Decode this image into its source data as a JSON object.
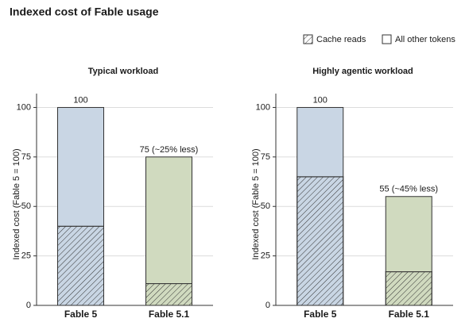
{
  "title": "Indexed cost of Fable usage",
  "legend": [
    "Cache reads",
    "All other tokens"
  ],
  "charts": [
    {
      "type": "bar",
      "stacked": true,
      "title": "Typical workload",
      "ylabel": "Indexed cost (Fable 5 = 100)",
      "categories": [
        "Fable 5",
        "Fable 5.1"
      ],
      "colors": [
        "#c9d6e4",
        "#d0dabf"
      ],
      "series": [
        {
          "name": "Cache reads",
          "hatch": true,
          "values": [
            40,
            11
          ]
        },
        {
          "name": "All other tokens",
          "hatch": false,
          "values": [
            60,
            64
          ]
        }
      ],
      "totals": [
        100,
        75
      ],
      "total_labels": [
        "100",
        "75 (~25% less)"
      ],
      "ylim": [
        0,
        107
      ],
      "yticks": [
        0,
        25,
        50,
        75,
        100
      ],
      "grid": true
    },
    {
      "type": "bar",
      "stacked": true,
      "title": "Highly agentic workload",
      "ylabel": "Indexed cost (Fable 5 = 100)",
      "categories": [
        "Fable 5",
        "Fable 5.1"
      ],
      "colors": [
        "#c9d6e4",
        "#d0dabf"
      ],
      "series": [
        {
          "name": "Cache reads",
          "hatch": true,
          "values": [
            65,
            17
          ]
        },
        {
          "name": "All other tokens",
          "hatch": false,
          "values": [
            35,
            38
          ]
        }
      ],
      "totals": [
        100,
        55
      ],
      "total_labels": [
        "100",
        "55 (~45% less)"
      ],
      "ylim": [
        0,
        107
      ],
      "yticks": [
        0,
        25,
        50,
        75,
        100
      ],
      "grid": true
    }
  ]
}
